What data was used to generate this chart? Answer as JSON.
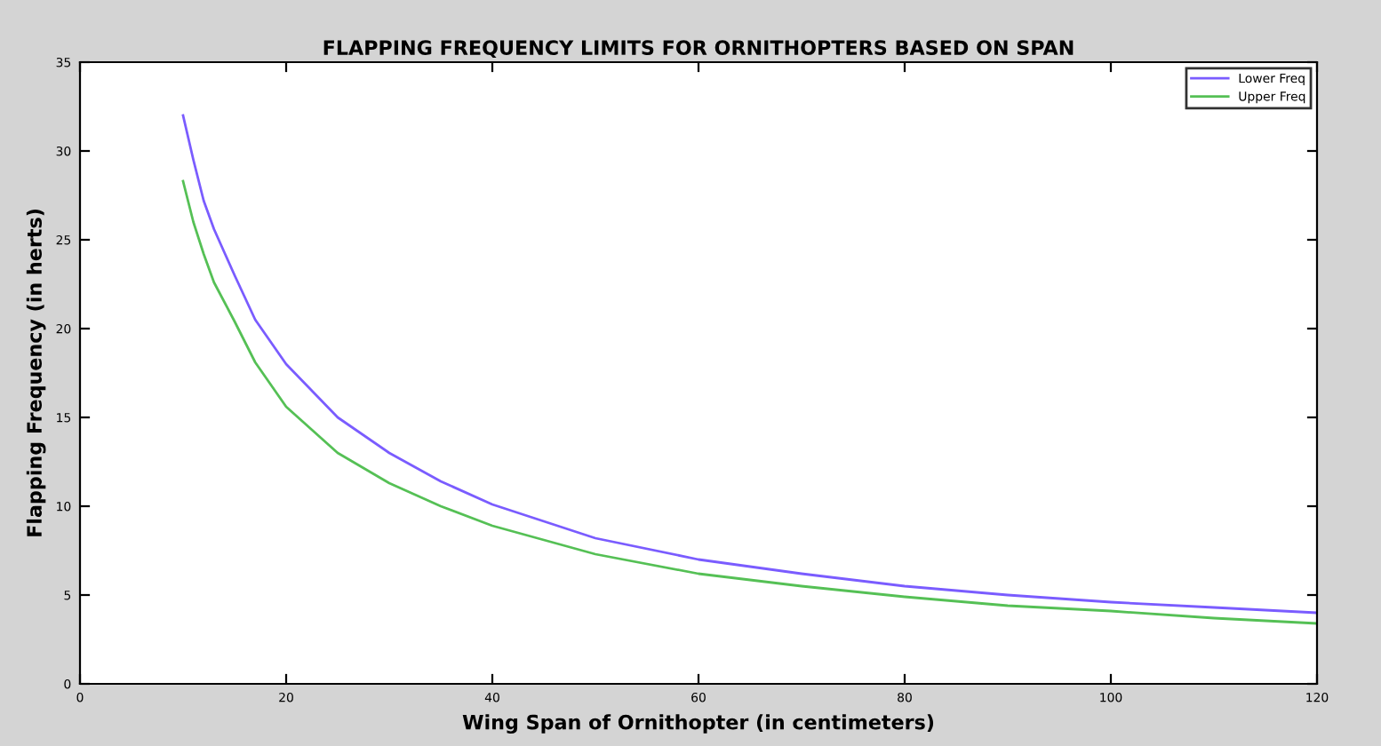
{
  "chart_data": {
    "type": "line",
    "title": "FLAPPING FREQUENCY LIMITS FOR ORNITHOPTERS BASED ON SPAN",
    "xlabel": "Wing Span of Ornithopter (in centimeters)",
    "ylabel": "Flapping Frequency (in herts)",
    "x": [
      10,
      11,
      12,
      13,
      15,
      17,
      20,
      25,
      30,
      35,
      40,
      50,
      60,
      70,
      80,
      90,
      100,
      110,
      120
    ],
    "series": [
      {
        "name": "Lower Freq",
        "color": "#7a5cff",
        "values": [
          32,
          29.5,
          27.2,
          25.6,
          23.0,
          20.5,
          18.0,
          15.0,
          13.0,
          11.4,
          10.1,
          8.2,
          7.0,
          6.2,
          5.5,
          5.0,
          4.6,
          4.3,
          4.0
        ]
      },
      {
        "name": "Upper Freq",
        "color": "#55c055",
        "values": [
          28.3,
          26.0,
          24.2,
          22.6,
          20.4,
          18.1,
          15.6,
          13.0,
          11.3,
          10.0,
          8.9,
          7.3,
          6.2,
          5.5,
          4.9,
          4.4,
          4.1,
          3.7,
          3.4
        ]
      }
    ],
    "xlim": [
      0,
      120
    ],
    "ylim": [
      0,
      35
    ],
    "xticks": [
      0,
      20,
      40,
      60,
      80,
      100,
      120
    ],
    "yticks": [
      0,
      5,
      10,
      15,
      20,
      25,
      30,
      35
    ],
    "grid": false,
    "legend": "top right",
    "marker": "none",
    "line_style": "solid"
  }
}
